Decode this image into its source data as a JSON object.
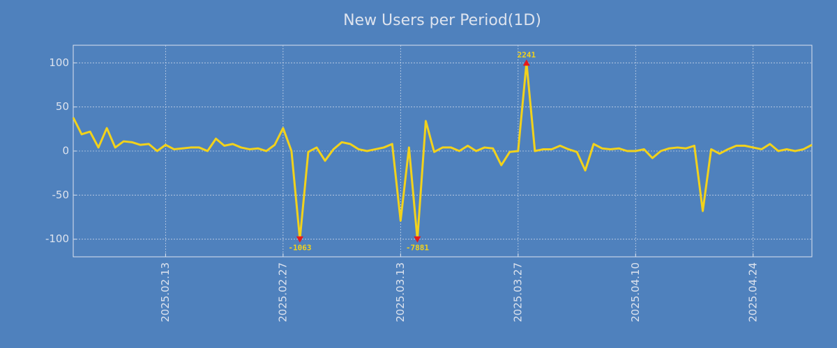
{
  "chart_data": {
    "type": "line",
    "title": "New Users per Period(1D)",
    "x": [
      "2025.02.02",
      "2025.02.03",
      "2025.02.04",
      "2025.02.05",
      "2025.02.06",
      "2025.02.07",
      "2025.02.08",
      "2025.02.09",
      "2025.02.10",
      "2025.02.11",
      "2025.02.12",
      "2025.02.13",
      "2025.02.14",
      "2025.02.15",
      "2025.02.16",
      "2025.02.17",
      "2025.02.18",
      "2025.02.19",
      "2025.02.20",
      "2025.02.21",
      "2025.02.22",
      "2025.02.23",
      "2025.02.24",
      "2025.02.25",
      "2025.02.26",
      "2025.02.27",
      "2025.02.28",
      "2025.03.01",
      "2025.03.02",
      "2025.03.03",
      "2025.03.04",
      "2025.03.05",
      "2025.03.06",
      "2025.03.07",
      "2025.03.08",
      "2025.03.09",
      "2025.03.10",
      "2025.03.11",
      "2025.03.12",
      "2025.03.13",
      "2025.03.14",
      "2025.03.15",
      "2025.03.16",
      "2025.03.17",
      "2025.03.18",
      "2025.03.19",
      "2025.03.20",
      "2025.03.21",
      "2025.03.22",
      "2025.03.23",
      "2025.03.24",
      "2025.03.25",
      "2025.03.26",
      "2025.03.27",
      "2025.03.28",
      "2025.03.29",
      "2025.03.30",
      "2025.03.31",
      "2025.04.01",
      "2025.04.02",
      "2025.04.03",
      "2025.04.04",
      "2025.04.05",
      "2025.04.06",
      "2025.04.07",
      "2025.04.08",
      "2025.04.09",
      "2025.04.10",
      "2025.04.11",
      "2025.04.12",
      "2025.04.13",
      "2025.04.14",
      "2025.04.15",
      "2025.04.16",
      "2025.04.17",
      "2025.04.18",
      "2025.04.19",
      "2025.04.20",
      "2025.04.21",
      "2025.04.22",
      "2025.04.23",
      "2025.04.24",
      "2025.04.25",
      "2025.04.26",
      "2025.04.27",
      "2025.04.28",
      "2025.04.29",
      "2025.04.30",
      "2025.05.01"
    ],
    "values": [
      38,
      19,
      22,
      4,
      26,
      4,
      11,
      10,
      7,
      8,
      0,
      7,
      2,
      3,
      4,
      4,
      0,
      14,
      6,
      8,
      4,
      2,
      3,
      0,
      7,
      26,
      0,
      -100,
      -1,
      4,
      -11,
      2,
      10,
      8,
      2,
      0,
      2,
      4,
      8,
      -79,
      4,
      -100,
      34,
      -1,
      4,
      4,
      0,
      6,
      0,
      4,
      3,
      -16,
      -1,
      0,
      100,
      0,
      2,
      2,
      6,
      2,
      -1,
      -22,
      8,
      3,
      2,
      3,
      0,
      0,
      2,
      -8,
      0,
      3,
      4,
      3,
      6,
      -68,
      2,
      -3,
      2,
      6,
      6,
      4,
      2,
      8,
      0,
      2,
      0,
      2,
      7
    ],
    "color": "#f2d21b",
    "annotations": [
      {
        "x": "2025.03.01",
        "label": "-1063"
      },
      {
        "x": "2025.03.15",
        "label": "-7881"
      },
      {
        "x": "2025.03.28",
        "label": "2241"
      }
    ],
    "marker_color": "#e8191a",
    "xlim": [
      "2025.02.02",
      "2025.05.01"
    ],
    "xticks": [
      "2025.02.13",
      "2025.02.27",
      "2025.03.13",
      "2025.03.27",
      "2025.04.10",
      "2025.04.24"
    ],
    "ylim": [
      -120,
      120
    ],
    "yticks": [
      -100,
      -50,
      0,
      50,
      100
    ],
    "grid": true
  }
}
